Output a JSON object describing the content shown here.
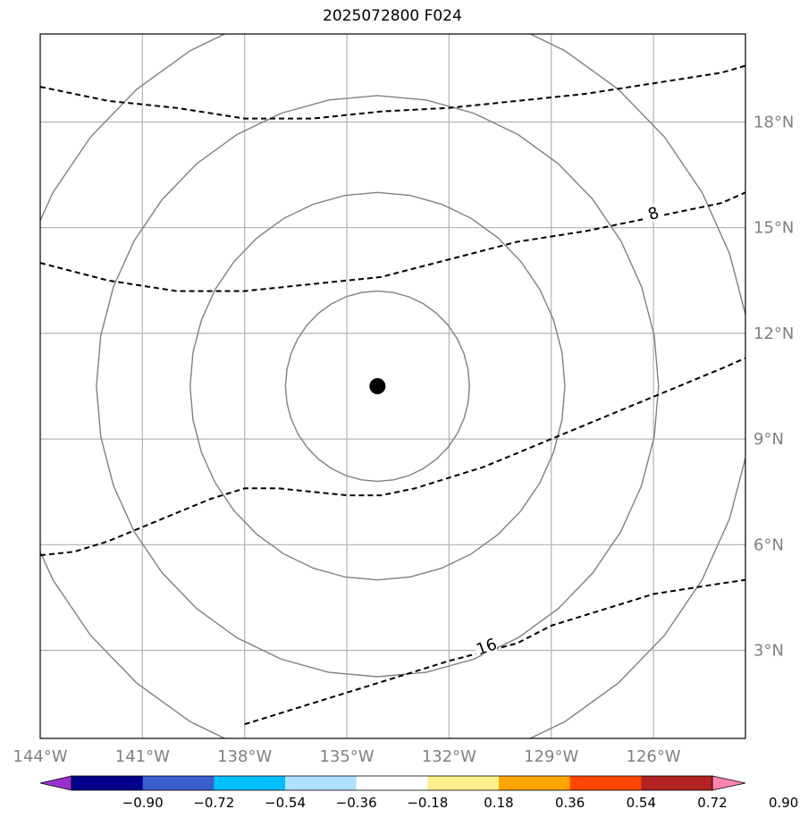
{
  "title": "2025072800 F024",
  "map": {
    "lon_range": [
      -144,
      -123.3
    ],
    "lat_range": [
      0.5,
      20.5
    ],
    "lon_ticks": [
      {
        "value": -144,
        "label": "144°W"
      },
      {
        "value": -141,
        "label": "141°W"
      },
      {
        "value": -138,
        "label": "138°W"
      },
      {
        "value": -135,
        "label": "135°W"
      },
      {
        "value": -132,
        "label": "132°W"
      },
      {
        "value": -129,
        "label": "129°W"
      },
      {
        "value": -126,
        "label": "126°W"
      }
    ],
    "lat_ticks": [
      {
        "value": 3,
        "label": "3°N"
      },
      {
        "value": 6,
        "label": "6°N"
      },
      {
        "value": 9,
        "label": "9°N"
      },
      {
        "value": 12,
        "label": "12°N"
      },
      {
        "value": 15,
        "label": "15°N"
      },
      {
        "value": 18,
        "label": "18°N"
      }
    ],
    "gridlines": true,
    "center_marker": {
      "lon": -134.1,
      "lat": 10.5
    },
    "range_rings_deg": [
      2.7,
      5.5,
      8.25,
      11.0
    ],
    "dashed_contours": [
      {
        "label": "",
        "points": [
          [
            -144,
            19
          ],
          [
            -143,
            18.8
          ],
          [
            -142,
            18.6
          ],
          [
            -140,
            18.4
          ],
          [
            -138,
            18.1
          ],
          [
            -136,
            18.1
          ],
          [
            -134,
            18.3
          ],
          [
            -132,
            18.4
          ],
          [
            -130,
            18.6
          ],
          [
            -128,
            18.8
          ],
          [
            -126,
            19.1
          ],
          [
            -124,
            19.4
          ],
          [
            -123.3,
            19.6
          ]
        ]
      },
      {
        "label": "8",
        "label_at": [
          -126,
          15.4
        ],
        "points": [
          [
            -144,
            14
          ],
          [
            -142,
            13.5
          ],
          [
            -140,
            13.2
          ],
          [
            -138,
            13.2
          ],
          [
            -136,
            13.4
          ],
          [
            -134,
            13.6
          ],
          [
            -132,
            14.1
          ],
          [
            -130,
            14.6
          ],
          [
            -128,
            14.9
          ],
          [
            -126,
            15.3
          ],
          [
            -124,
            15.7
          ],
          [
            -123.3,
            16
          ]
        ]
      },
      {
        "label": "",
        "points": [
          [
            -144,
            5.7
          ],
          [
            -143,
            5.8
          ],
          [
            -142,
            6.1
          ],
          [
            -141,
            6.5
          ],
          [
            -140,
            6.9
          ],
          [
            -139,
            7.3
          ],
          [
            -138,
            7.6
          ],
          [
            -137,
            7.6
          ],
          [
            -136,
            7.5
          ],
          [
            -135,
            7.4
          ],
          [
            -134,
            7.4
          ],
          [
            -133,
            7.6
          ],
          [
            -132,
            7.9
          ],
          [
            -131,
            8.2
          ],
          [
            -130,
            8.6
          ],
          [
            -129,
            9.0
          ],
          [
            -128,
            9.4
          ],
          [
            -126,
            10.2
          ],
          [
            -124,
            11.0
          ],
          [
            -123.3,
            11.3
          ]
        ]
      },
      {
        "label": "16",
        "label_at": [
          -130.9,
          3.1
        ],
        "points": [
          [
            -138,
            0.9
          ],
          [
            -136,
            1.5
          ],
          [
            -134,
            2.1
          ],
          [
            -132,
            2.7
          ],
          [
            -130,
            3.2
          ],
          [
            -129,
            3.7
          ],
          [
            -128,
            4.0
          ],
          [
            -126,
            4.6
          ],
          [
            -124,
            4.9
          ],
          [
            -123.3,
            5.0
          ]
        ]
      }
    ]
  },
  "colorbar": {
    "ticks": [
      "−0.90",
      "−0.72",
      "−0.54",
      "−0.36",
      "−0.18",
      "0.18",
      "0.36",
      "0.54",
      "0.72",
      "0.90"
    ],
    "colors": [
      "#9932cc",
      "#00008b",
      "#3a5fcd",
      "#00bfff",
      "#b0e0ff",
      "#ffffff",
      "#fff08c",
      "#ffa500",
      "#ff4500",
      "#b22222",
      "#ff85b0"
    ]
  }
}
